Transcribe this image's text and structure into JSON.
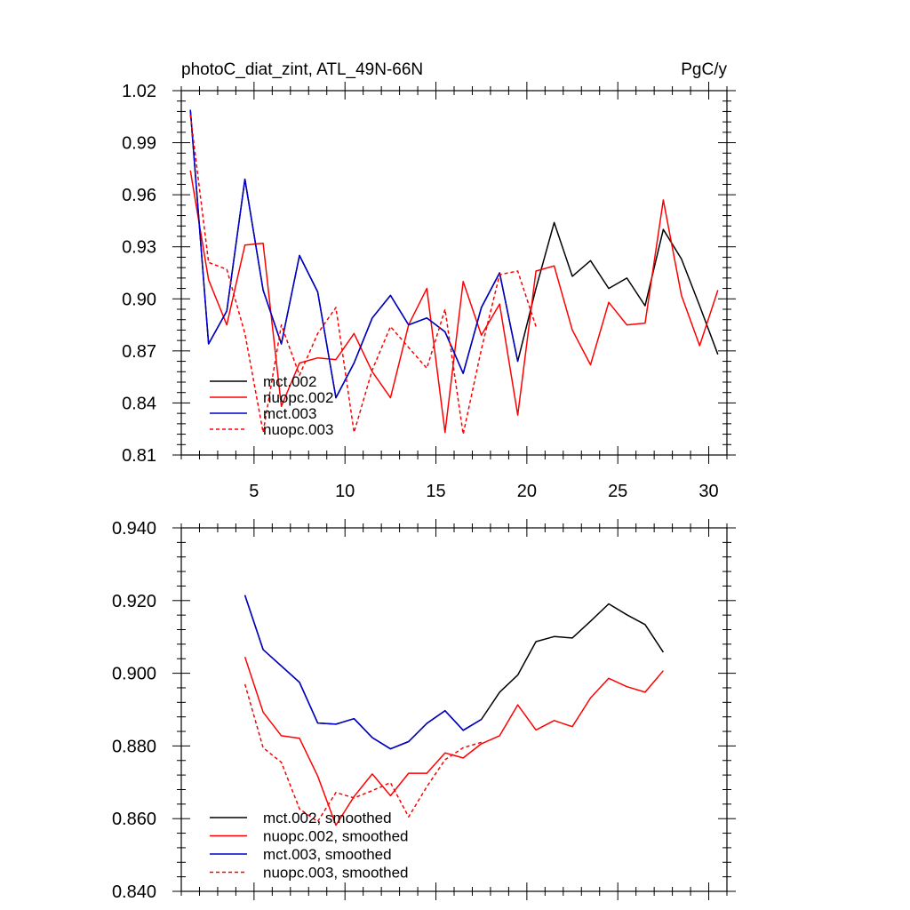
{
  "chart_data": [
    {
      "type": "line",
      "title_left": "photoC_diat_zint, ATL_49N-66N",
      "title_right": "PgC/y",
      "xlabel": "",
      "ylabel": "",
      "xlim": [
        1,
        31
      ],
      "ylim": [
        0.81,
        1.02
      ],
      "xticks": [
        5,
        10,
        15,
        20,
        25,
        30
      ],
      "xtick_labels": [
        "5",
        "10",
        "15",
        "20",
        "25",
        "30"
      ],
      "yticks": [
        0.81,
        0.84,
        0.87,
        0.9,
        0.93,
        0.96,
        0.99,
        1.02
      ],
      "ytick_labels": [
        "0.81",
        "0.84",
        "0.87",
        "0.90",
        "0.93",
        "0.96",
        "0.99",
        "1.02"
      ],
      "legend_position": "bottom-left",
      "series": [
        {
          "name": "mct.002",
          "color": "#000000",
          "dash": "solid",
          "x": [
            1.5,
            2.5,
            3.5,
            4.5,
            5.5,
            6.5,
            7.5,
            8.5,
            9.5,
            10.5,
            11.5,
            12.5,
            13.5,
            14.5,
            15.5,
            16.5,
            17.5,
            18.5,
            19.5,
            20.5,
            21.5,
            22.5,
            23.5,
            24.5,
            25.5,
            26.5,
            27.5,
            28.5,
            29.5,
            30.5
          ],
          "values": [
            1.009,
            0.874,
            0.893,
            0.969,
            0.905,
            0.874,
            0.925,
            0.904,
            0.843,
            0.863,
            0.889,
            0.902,
            0.885,
            0.889,
            0.881,
            0.857,
            0.895,
            0.915,
            0.864,
            0.906,
            0.944,
            0.913,
            0.922,
            0.906,
            0.912,
            0.896,
            0.94,
            0.923,
            0.896,
            0.868
          ]
        },
        {
          "name": "nuopc.002",
          "color": "#ff0000",
          "dash": "solid",
          "x": [
            1.5,
            2.5,
            3.5,
            4.5,
            5.5,
            6.5,
            7.5,
            8.5,
            9.5,
            10.5,
            11.5,
            12.5,
            13.5,
            14.5,
            15.5,
            16.5,
            17.5,
            18.5,
            19.5,
            20.5,
            21.5,
            22.5,
            23.5,
            24.5,
            25.5,
            26.5,
            27.5,
            28.5,
            29.5,
            30.5
          ],
          "values": [
            0.974,
            0.911,
            0.885,
            0.931,
            0.932,
            0.838,
            0.863,
            0.866,
            0.865,
            0.88,
            0.858,
            0.843,
            0.885,
            0.906,
            0.823,
            0.91,
            0.879,
            0.897,
            0.833,
            0.916,
            0.919,
            0.882,
            0.862,
            0.898,
            0.885,
            0.886,
            0.957,
            0.902,
            0.873,
            0.905
          ]
        },
        {
          "name": "mct.003",
          "color": "#0000cc",
          "dash": "solid",
          "x": [
            1.5,
            2.5,
            3.5,
            4.5,
            5.5,
            6.5,
            7.5,
            8.5,
            9.5,
            10.5,
            11.5,
            12.5,
            13.5,
            14.5,
            15.5,
            16.5,
            17.5,
            18.5,
            19.5
          ],
          "values": [
            1.009,
            0.874,
            0.893,
            0.969,
            0.905,
            0.874,
            0.925,
            0.904,
            0.843,
            0.863,
            0.889,
            0.902,
            0.885,
            0.889,
            0.881,
            0.857,
            0.895,
            0.915,
            0.864
          ]
        },
        {
          "name": "nuopc.003",
          "color": "#ff0000",
          "dash": "dashed",
          "x": [
            1.5,
            2.5,
            3.5,
            4.5,
            5.5,
            6.5,
            7.5,
            8.5,
            9.5,
            10.5,
            11.5,
            12.5,
            13.5,
            14.5,
            15.5,
            16.5,
            17.5,
            18.5,
            19.5,
            20.5
          ],
          "values": [
            1.006,
            0.921,
            0.917,
            0.88,
            0.823,
            0.885,
            0.856,
            0.88,
            0.895,
            0.823,
            0.859,
            0.884,
            0.872,
            0.86,
            0.894,
            0.822,
            0.871,
            0.914,
            0.916,
            0.884
          ]
        }
      ]
    },
    {
      "type": "line",
      "title_left": "",
      "title_right": "",
      "xlabel": "",
      "ylabel": "",
      "xlim": [
        1,
        31
      ],
      "ylim": [
        0.84,
        0.94
      ],
      "xticks": [
        5,
        10,
        15,
        20,
        25,
        30
      ],
      "xtick_labels": [],
      "yticks": [
        0.84,
        0.86,
        0.88,
        0.9,
        0.92,
        0.94
      ],
      "ytick_labels": [
        "0.840",
        "0.860",
        "0.880",
        "0.900",
        "0.920",
        "0.940"
      ],
      "legend_position": "bottom-left",
      "series": [
        {
          "name": "mct.002, smoothed",
          "color": "#000000",
          "dash": "solid",
          "x": [
            4.5,
            5.5,
            6.5,
            7.5,
            8.5,
            9.5,
            10.5,
            11.5,
            12.5,
            13.5,
            14.5,
            15.5,
            16.5,
            17.5,
            18.5,
            19.5,
            20.5,
            21.5,
            22.5,
            23.5,
            24.5,
            25.5,
            26.5,
            27.5
          ],
          "values": [
            0.9215,
            0.9065,
            0.902,
            0.8975,
            0.8863,
            0.886,
            0.8875,
            0.8823,
            0.8792,
            0.8812,
            0.8862,
            0.8897,
            0.8843,
            0.8873,
            0.8948,
            0.8995,
            0.9087,
            0.9101,
            0.9097,
            0.9143,
            0.9191,
            0.9161,
            0.9134,
            0.9058
          ]
        },
        {
          "name": "nuopc.002, smoothed",
          "color": "#ff0000",
          "dash": "solid",
          "x": [
            4.5,
            5.5,
            6.5,
            7.5,
            8.5,
            9.5,
            10.5,
            11.5,
            12.5,
            13.5,
            14.5,
            15.5,
            16.5,
            17.5,
            18.5,
            19.5,
            20.5,
            21.5,
            22.5,
            23.5,
            24.5,
            25.5,
            26.5,
            27.5
          ],
          "values": [
            0.9045,
            0.8893,
            0.8828,
            0.8821,
            0.8717,
            0.8582,
            0.8661,
            0.8723,
            0.8663,
            0.8725,
            0.8725,
            0.8781,
            0.8767,
            0.8806,
            0.8828,
            0.8913,
            0.8844,
            0.887,
            0.8853,
            0.8932,
            0.8986,
            0.8963,
            0.8948,
            0.9007
          ]
        },
        {
          "name": "mct.003, smoothed",
          "color": "#0000cc",
          "dash": "solid",
          "x": [
            4.5,
            5.5,
            6.5,
            7.5,
            8.5,
            9.5,
            10.5,
            11.5,
            12.5,
            13.5,
            14.5,
            15.5,
            16.5,
            17.5
          ],
          "values": [
            0.9215,
            0.9065,
            0.902,
            0.8975,
            0.8863,
            0.886,
            0.8875,
            0.8823,
            0.8792,
            0.8812,
            0.8862,
            0.8897,
            0.8843,
            0.8873
          ]
        },
        {
          "name": "nuopc.003, smoothed",
          "color": "#ff0000",
          "dash": "dashed",
          "x": [
            4.5,
            5.5,
            6.5,
            7.5,
            8.5,
            9.5,
            10.5,
            11.5,
            12.5,
            13.5,
            14.5,
            15.5,
            16.5,
            17.5
          ],
          "values": [
            0.897,
            0.8795,
            0.8755,
            0.8627,
            0.8592,
            0.8672,
            0.8657,
            0.8677,
            0.8699,
            0.8605,
            0.8688,
            0.8762,
            0.8795,
            0.881
          ]
        }
      ]
    }
  ]
}
